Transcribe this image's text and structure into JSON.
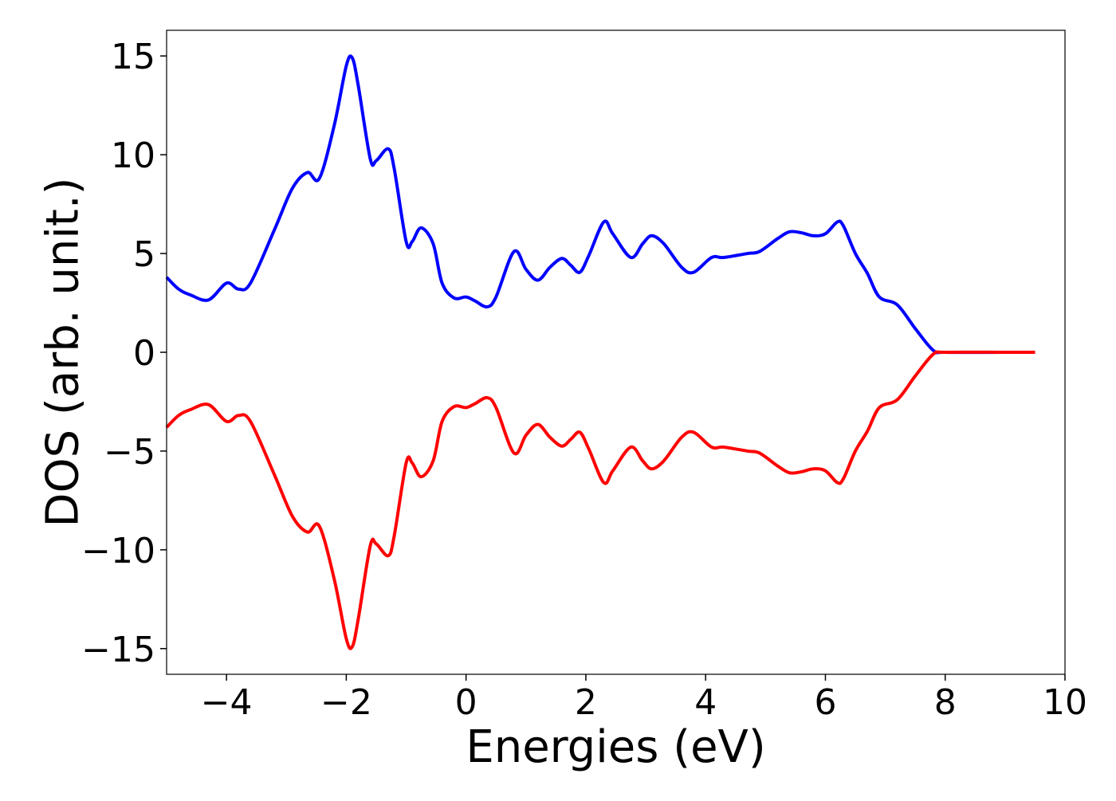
{
  "chart_data": {
    "type": "line",
    "title": "",
    "xlabel": "Energies (eV)",
    "ylabel": "DOS (arb. unit.)",
    "xlim": [
      -5,
      10
    ],
    "ylim": [
      -16.3,
      16.3
    ],
    "grid": false,
    "legend": "none",
    "x_ticks": [
      -4,
      -2,
      0,
      2,
      4,
      6,
      8,
      10
    ],
    "x_tick_labels": [
      "−4",
      "−2",
      "0",
      "2",
      "4",
      "6",
      "8",
      "10"
    ],
    "y_ticks": [
      -15,
      -10,
      -5,
      0,
      5,
      10,
      15
    ],
    "y_tick_labels": [
      "−15",
      "−10",
      "−5",
      "0",
      "5",
      "10",
      "15"
    ],
    "series": [
      {
        "color": "#0000ff",
        "x": [
          -5.0,
          -4.8,
          -4.6,
          -4.3,
          -4.0,
          -3.8,
          -3.6,
          -3.2,
          -2.9,
          -2.65,
          -2.45,
          -2.2,
          -2.0,
          -1.9,
          -1.8,
          -1.6,
          -1.5,
          -1.3,
          -1.2,
          -1.0,
          -0.9,
          -0.75,
          -0.55,
          -0.4,
          -0.2,
          0.0,
          0.15,
          0.35,
          0.5,
          0.8,
          1.0,
          1.2,
          1.4,
          1.6,
          1.75,
          1.9,
          2.05,
          2.3,
          2.45,
          2.75,
          2.95,
          3.1,
          3.3,
          3.6,
          3.8,
          4.1,
          4.3,
          4.7,
          4.9,
          5.2,
          5.4,
          5.6,
          5.8,
          6.0,
          6.2,
          6.3,
          6.5,
          6.7,
          6.9,
          7.2,
          7.5,
          7.8,
          8.0,
          9.0,
          9.5
        ],
        "y": [
          3.8,
          3.2,
          2.9,
          2.65,
          3.5,
          3.2,
          3.5,
          6.2,
          8.3,
          9.1,
          8.8,
          11.5,
          14.5,
          14.9,
          13.5,
          9.8,
          9.7,
          10.3,
          9.3,
          5.6,
          5.6,
          6.3,
          5.5,
          3.5,
          2.75,
          2.8,
          2.6,
          2.3,
          2.8,
          5.1,
          4.2,
          3.65,
          4.3,
          4.75,
          4.4,
          4.05,
          4.9,
          6.6,
          6.0,
          4.8,
          5.5,
          5.9,
          5.5,
          4.3,
          4.05,
          4.8,
          4.8,
          5.0,
          5.1,
          5.75,
          6.1,
          6.05,
          5.9,
          6.0,
          6.6,
          6.4,
          5.0,
          4.0,
          2.8,
          2.4,
          1.2,
          0.1,
          0.0,
          0.0,
          0.0
        ]
      },
      {
        "color": "#ff0000",
        "x": [
          -5.0,
          -4.8,
          -4.6,
          -4.3,
          -4.0,
          -3.8,
          -3.6,
          -3.2,
          -2.9,
          -2.65,
          -2.45,
          -2.2,
          -2.0,
          -1.9,
          -1.8,
          -1.6,
          -1.5,
          -1.3,
          -1.2,
          -1.0,
          -0.9,
          -0.75,
          -0.55,
          -0.4,
          -0.2,
          0.0,
          0.15,
          0.35,
          0.5,
          0.8,
          1.0,
          1.2,
          1.4,
          1.6,
          1.75,
          1.9,
          2.05,
          2.3,
          2.45,
          2.75,
          2.95,
          3.1,
          3.3,
          3.6,
          3.8,
          4.1,
          4.3,
          4.7,
          4.9,
          5.2,
          5.4,
          5.6,
          5.8,
          6.0,
          6.2,
          6.3,
          6.5,
          6.7,
          6.9,
          7.2,
          7.5,
          7.8,
          8.0,
          9.0,
          9.5
        ],
        "y": [
          -3.8,
          -3.2,
          -2.9,
          -2.65,
          -3.5,
          -3.2,
          -3.5,
          -6.2,
          -8.3,
          -9.1,
          -8.8,
          -11.5,
          -14.5,
          -14.9,
          -13.5,
          -9.8,
          -9.7,
          -10.3,
          -9.3,
          -5.6,
          -5.6,
          -6.3,
          -5.5,
          -3.5,
          -2.75,
          -2.8,
          -2.6,
          -2.3,
          -2.8,
          -5.1,
          -4.2,
          -3.65,
          -4.3,
          -4.75,
          -4.4,
          -4.05,
          -4.9,
          -6.6,
          -6.0,
          -4.8,
          -5.5,
          -5.9,
          -5.5,
          -4.3,
          -4.05,
          -4.8,
          -4.8,
          -5.0,
          -5.1,
          -5.75,
          -6.1,
          -6.05,
          -5.9,
          -6.0,
          -6.6,
          -6.4,
          -5.0,
          -4.0,
          -2.8,
          -2.4,
          -1.2,
          -0.1,
          0.0,
          0.0,
          0.0
        ]
      }
    ]
  }
}
